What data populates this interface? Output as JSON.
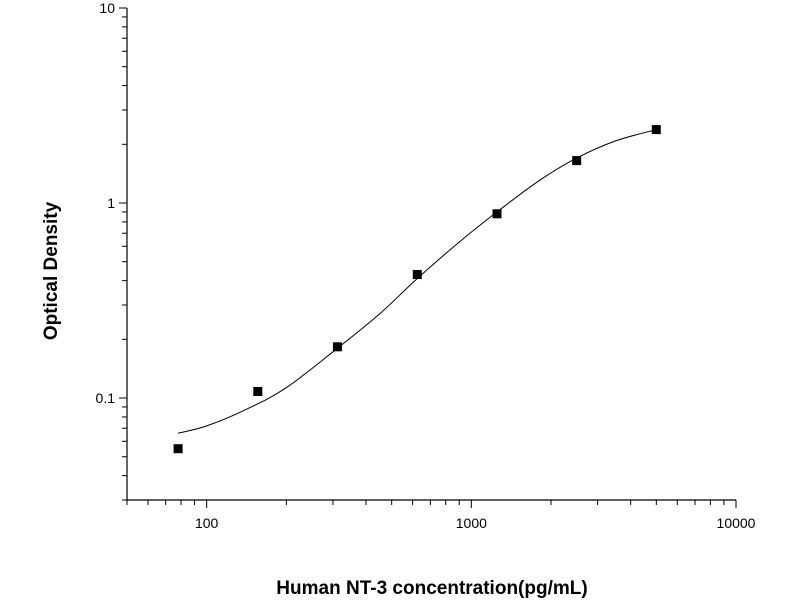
{
  "chart_data": {
    "type": "scatter",
    "title": "",
    "xlabel": "Human NT-3 concentration(pg/mL)",
    "ylabel": "Optical Density",
    "xscale": "log",
    "yscale": "log",
    "xlim": [
      50,
      10000
    ],
    "ylim": [
      0.03,
      10
    ],
    "x_ticks": [
      {
        "value": 100,
        "label": "100"
      },
      {
        "value": 1000,
        "label": "1000"
      },
      {
        "value": 10000,
        "label": "10000"
      }
    ],
    "y_ticks": [
      {
        "value": 0.1,
        "label": "0.1"
      },
      {
        "value": 1,
        "label": "1"
      },
      {
        "value": 10,
        "label": "10"
      }
    ],
    "grid": false,
    "legend": "none",
    "points": [
      {
        "x": 78,
        "y": 0.055
      },
      {
        "x": 156,
        "y": 0.108
      },
      {
        "x": 312,
        "y": 0.183
      },
      {
        "x": 625,
        "y": 0.43
      },
      {
        "x": 1250,
        "y": 0.88
      },
      {
        "x": 2500,
        "y": 1.65
      },
      {
        "x": 5000,
        "y": 2.38
      }
    ],
    "fit_curve": [
      {
        "x": 78,
        "y": 0.066
      },
      {
        "x": 100,
        "y": 0.072
      },
      {
        "x": 140,
        "y": 0.087
      },
      {
        "x": 200,
        "y": 0.113
      },
      {
        "x": 312,
        "y": 0.18
      },
      {
        "x": 450,
        "y": 0.27
      },
      {
        "x": 625,
        "y": 0.41
      },
      {
        "x": 900,
        "y": 0.63
      },
      {
        "x": 1250,
        "y": 0.9
      },
      {
        "x": 1800,
        "y": 1.3
      },
      {
        "x": 2500,
        "y": 1.7
      },
      {
        "x": 3500,
        "y": 2.08
      },
      {
        "x": 5000,
        "y": 2.38
      }
    ],
    "colors": {
      "marker": "#000000",
      "line": "#000000",
      "axis": "#000000"
    }
  }
}
